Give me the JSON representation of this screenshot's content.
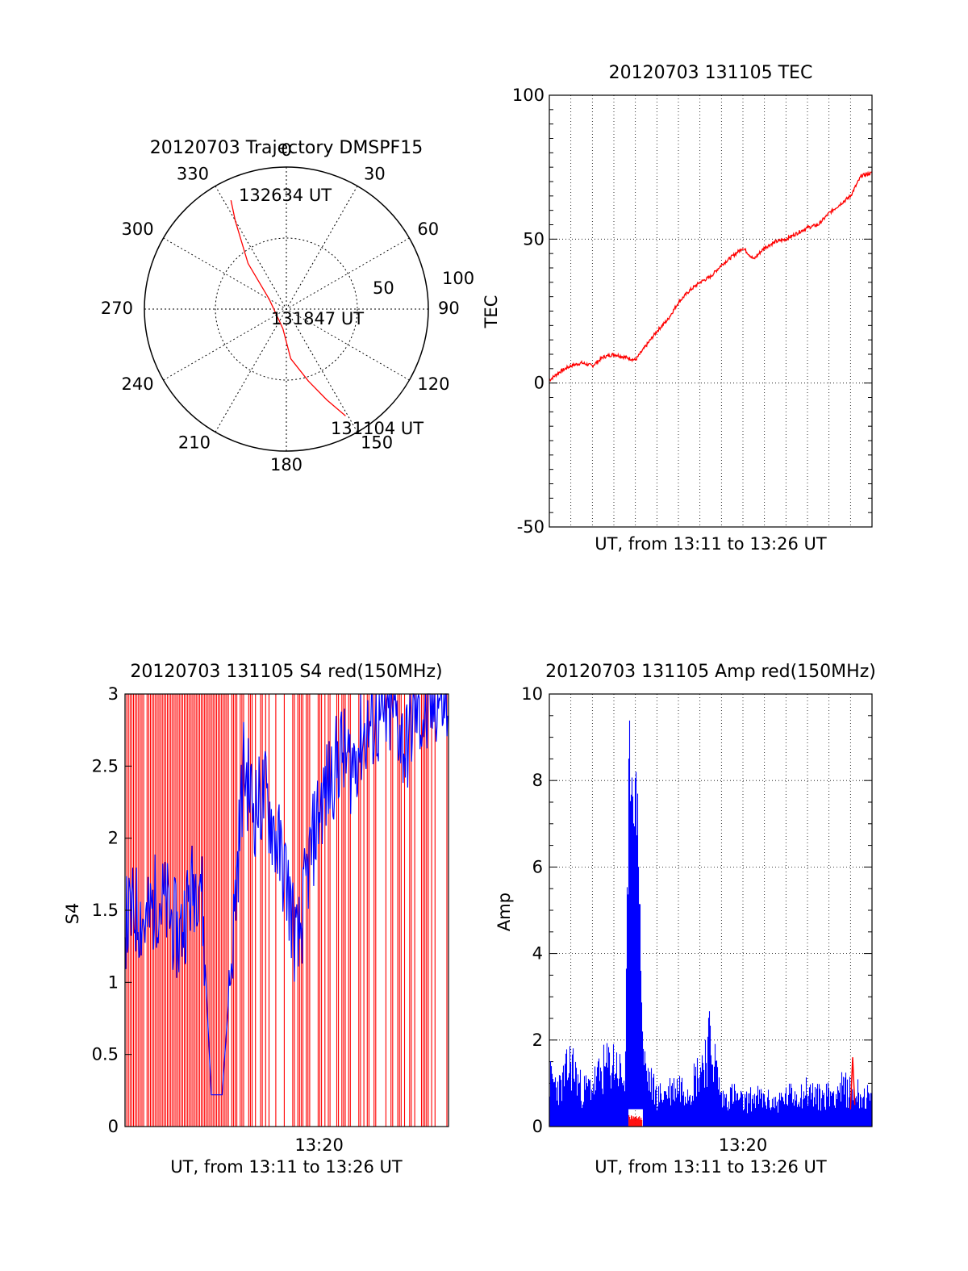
{
  "colors": {
    "red": "#ff0000",
    "blue": "#0000ff",
    "black": "#000000",
    "background": "#ffffff"
  },
  "chart_data": [
    {
      "id": "trajectory",
      "type": "polar",
      "title": "20120703 Trajectory DMSPF15",
      "angle_labels": [
        "0",
        "30",
        "60",
        "90",
        "120",
        "150",
        "180",
        "210",
        "240",
        "270",
        "300",
        "330"
      ],
      "angles_deg": [
        0,
        30,
        60,
        90,
        120,
        150,
        180,
        210,
        240,
        270,
        300,
        330
      ],
      "radius_labels": [
        "50",
        "100"
      ],
      "radius_values": [
        50,
        100
      ],
      "rlim": [
        0,
        100
      ],
      "grid": true,
      "track": {
        "color": "#ff0000",
        "points": [
          {
            "az": 151,
            "r": 86
          },
          {
            "az": 156,
            "r": 70
          },
          {
            "az": 163,
            "r": 53
          },
          {
            "az": 175,
            "r": 35
          },
          {
            "az": 190,
            "r": 14
          },
          {
            "az": 300,
            "r": 14
          },
          {
            "az": 320,
            "r": 42
          },
          {
            "az": 330,
            "r": 72
          },
          {
            "az": 333,
            "r": 86
          }
        ]
      },
      "annotations": [
        "132634 UT",
        "131847 UT",
        "131104 UT"
      ]
    },
    {
      "id": "tec",
      "type": "line",
      "title": "20120703 131105 TEC",
      "xlabel": "UT, from 13:11 to 13:26 UT",
      "ylabel": "TEC",
      "ylim": [
        -50,
        100
      ],
      "yticks": [
        "100",
        "50",
        "0",
        "-50"
      ],
      "ytick_values": [
        100,
        50,
        0,
        -50
      ],
      "xlim": [
        0,
        15
      ],
      "grid": true,
      "series": [
        {
          "color": "#ff0000",
          "x": [
            0,
            0.5,
            1.0,
            1.5,
            2.0,
            2.5,
            3.0,
            3.5,
            4.0,
            4.5,
            5.0,
            5.5,
            6.0,
            6.5,
            7.0,
            7.5,
            8.0,
            8.5,
            9.0,
            9.5,
            10.0,
            10.5,
            11.0,
            11.5,
            12.0,
            12.5,
            13.0,
            13.5,
            14.0,
            14.5,
            15.0
          ],
          "y": [
            1,
            4,
            6,
            7,
            6,
            9,
            10,
            9,
            8,
            13,
            18,
            22,
            28,
            32,
            35,
            37,
            41,
            44,
            47,
            43,
            47,
            49,
            50,
            52,
            54,
            55,
            59,
            62,
            65,
            72,
            73
          ]
        }
      ]
    },
    {
      "id": "s4",
      "type": "line",
      "title": "20120703 131105 S4 red(150MHz)",
      "xlabel": "UT, from 13:11 to 13:26 UT",
      "ylabel": "S4",
      "ylim": [
        0,
        3
      ],
      "yticks": [
        "3",
        "2.5",
        "2",
        "1.5",
        "1",
        "0.5",
        "0"
      ],
      "ytick_values": [
        3,
        2.5,
        2,
        1.5,
        1,
        0.5,
        0
      ],
      "xlim": [
        0,
        15
      ],
      "xtick_labels": [
        "13:20"
      ],
      "xtick_values": [
        9
      ],
      "grid": false,
      "series": [
        {
          "color": "#0000ff",
          "x": [
            0,
            0.5,
            1.0,
            1.5,
            2.0,
            2.5,
            3.0,
            3.5,
            4.0,
            4.5,
            5.0,
            5.5,
            6.0,
            6.5,
            7.0,
            7.5,
            8.0,
            8.5,
            9.0,
            9.5,
            10.0,
            10.5,
            11.0,
            11.5,
            12.0,
            12.5,
            13.0,
            13.5,
            14.0,
            14.5,
            15.0
          ],
          "y": [
            1.4,
            1.5,
            1.4,
            1.6,
            1.5,
            1.3,
            1.6,
            1.8,
            0.22,
            0.22,
            1.3,
            2.5,
            2.2,
            2.3,
            2.0,
            1.7,
            1.2,
            1.8,
            2.2,
            2.4,
            2.6,
            2.5,
            2.7,
            2.8,
            2.8,
            2.9,
            2.6,
            2.9,
            2.8,
            3.0,
            2.9
          ]
        }
      ],
      "red_dropouts": "dense vertical red lines spanning 0 to 3 across the whole interval"
    },
    {
      "id": "amp",
      "type": "line",
      "title": "20120703 131105 Amp red(150MHz)",
      "xlabel": "UT, from 13:11 to 13:26 UT",
      "ylabel": "Amp",
      "ylim": [
        0,
        10
      ],
      "yticks": [
        "10",
        "8",
        "6",
        "4",
        "2",
        "0"
      ],
      "ytick_values": [
        10,
        8,
        6,
        4,
        2,
        0
      ],
      "xlim": [
        0,
        15
      ],
      "xtick_labels": [
        "13:20"
      ],
      "xtick_values": [
        9
      ],
      "grid": true,
      "series": [
        {
          "color": "#0000ff",
          "x": [
            0,
            0.5,
            1.0,
            1.5,
            2.0,
            2.5,
            3.0,
            3.5,
            3.7,
            3.9,
            4.1,
            4.3,
            4.5,
            5.0,
            5.5,
            6.0,
            6.5,
            7.0,
            7.5,
            8.0,
            8.5,
            9.0,
            9.5,
            10.0,
            10.5,
            11.0,
            11.5,
            12.0,
            12.5,
            13.0,
            13.5,
            14.0,
            14.5,
            15.0
          ],
          "y": [
            1.6,
            1.3,
            2.2,
            1.2,
            1.4,
            1.9,
            2.2,
            1.5,
            9.6,
            8.8,
            8.0,
            2.6,
            1.8,
            1.0,
            1.2,
            1.4,
            1.3,
            2.0,
            2.9,
            0.9,
            1.1,
            0.8,
            1.0,
            0.9,
            0.8,
            1.0,
            1.1,
            1.2,
            1.0,
            1.1,
            1.3,
            1.2,
            1.1,
            0.9
          ]
        },
        {
          "color": "#ff0000",
          "x": [
            3.7,
            3.9,
            4.1,
            4.3,
            14.0,
            14.1,
            14.2
          ],
          "y": [
            0.2,
            0.25,
            0.2,
            0.18,
            0.4,
            1.6,
            0.5
          ]
        }
      ]
    }
  ]
}
